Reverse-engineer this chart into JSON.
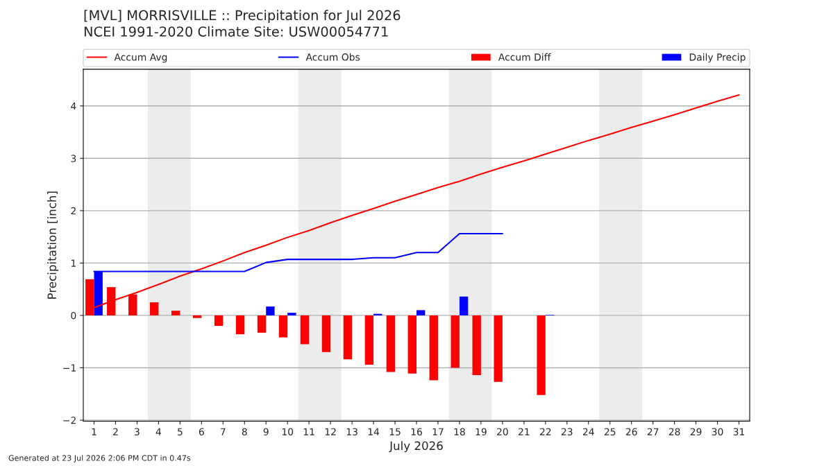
{
  "chart_data": {
    "type": "bar",
    "title": "[MVL] MORRISVILLE :: Precipitation for Jul 2026",
    "subtitle": "NCEI 1991-2020 Climate Site: USW00054771",
    "xlabel": "July 2026",
    "ylabel": "Precipitation [inch]",
    "x": [
      1,
      2,
      3,
      4,
      5,
      6,
      7,
      8,
      9,
      10,
      11,
      12,
      13,
      14,
      15,
      16,
      17,
      18,
      19,
      20,
      21,
      22,
      23,
      24,
      25,
      26,
      27,
      28,
      29,
      30,
      31
    ],
    "xlim": [
      0.5,
      31.5
    ],
    "xticks": [
      1,
      2,
      3,
      4,
      5,
      6,
      7,
      8,
      9,
      10,
      11,
      12,
      13,
      14,
      15,
      16,
      17,
      18,
      19,
      20,
      21,
      22,
      23,
      24,
      25,
      26,
      27,
      28,
      29,
      30,
      31
    ],
    "ylim": [
      -2.02,
      4.7
    ],
    "yticks": [
      {
        "value": -2,
        "label": "−2"
      },
      {
        "value": -1,
        "label": "−1"
      },
      0,
      1,
      2,
      3,
      4
    ],
    "series": [
      {
        "name": "Accum Avg",
        "type": "line",
        "color": "#ff0000",
        "values": [
          0.15,
          0.3,
          0.44,
          0.59,
          0.75,
          0.89,
          1.04,
          1.2,
          1.34,
          1.49,
          1.62,
          1.77,
          1.91,
          2.04,
          2.18,
          2.31,
          2.44,
          2.56,
          2.7,
          2.83,
          2.95,
          3.08,
          3.21,
          3.34,
          3.46,
          3.59,
          3.71,
          3.83,
          3.96,
          4.09,
          4.21
        ]
      },
      {
        "name": "Accum Obs",
        "type": "line",
        "color": "#0000ff",
        "values": [
          0.84,
          0.84,
          0.84,
          0.84,
          0.84,
          0.84,
          0.84,
          0.84,
          1.01,
          1.07,
          1.07,
          1.07,
          1.07,
          1.1,
          1.1,
          1.2,
          1.2,
          1.56,
          1.56,
          1.56,
          null,
          null,
          null,
          null,
          null,
          null,
          null,
          null,
          null,
          null,
          null
        ]
      },
      {
        "name": "Accum Diff",
        "color": "#ff0000",
        "values": [
          0.69,
          0.54,
          0.4,
          0.25,
          0.09,
          -0.05,
          -0.2,
          -0.36,
          -0.33,
          -0.42,
          -0.55,
          -0.7,
          -0.84,
          -0.94,
          -1.08,
          -1.11,
          -1.24,
          -1.0,
          -1.14,
          -1.27,
          null,
          -1.52,
          null,
          null,
          null,
          null,
          null,
          null,
          null,
          null,
          null
        ]
      },
      {
        "name": "Daily Precip",
        "color": "#0000ff",
        "values": [
          0.84,
          0,
          0,
          0,
          0,
          0,
          0,
          0,
          0.17,
          0.05,
          0,
          0,
          0,
          0.03,
          0,
          0.1,
          0,
          0.36,
          0,
          0,
          null,
          0.01,
          null,
          null,
          null,
          null,
          null,
          null,
          null,
          null,
          null
        ]
      }
    ],
    "bands": [
      {
        "axis": "x",
        "from": 3.5,
        "to": 5.5,
        "color": "#ececec"
      },
      {
        "axis": "x",
        "from": 10.5,
        "to": 12.5,
        "color": "#ececec"
      },
      {
        "axis": "x",
        "from": 17.5,
        "to": 19.5,
        "color": "#ececec"
      },
      {
        "axis": "x",
        "from": 24.5,
        "to": 26.5,
        "color": "#ececec"
      }
    ],
    "grid": "y",
    "legend": "top",
    "annotations": [
      "Generated at 23 Jul 2026 2:06 PM CDT in 0.47s"
    ]
  }
}
